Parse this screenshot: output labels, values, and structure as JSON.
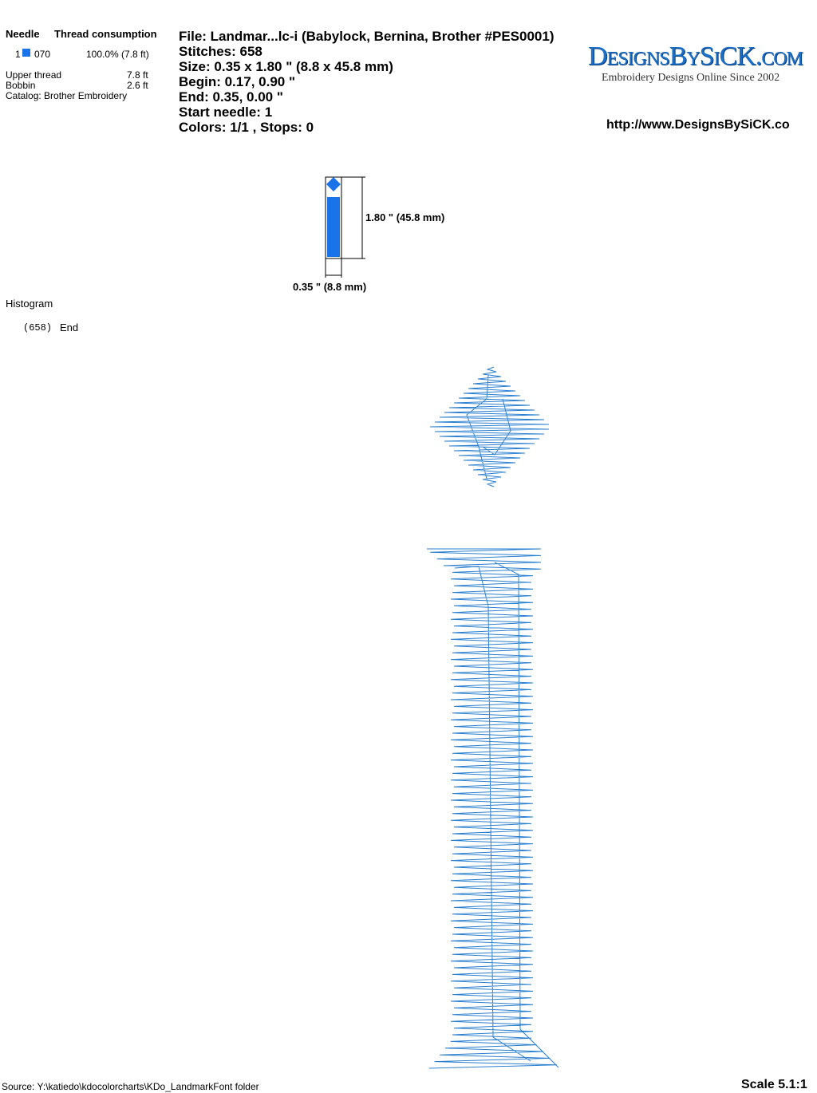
{
  "needle_table": {
    "header": {
      "needle": "Needle",
      "thread": "Thread consumption"
    },
    "row": {
      "number": "1",
      "code": "070",
      "share": "100.0% (7.8 ft)"
    },
    "upper": {
      "label": "Upper thread",
      "value": "7.8 ft"
    },
    "bobbin": {
      "label": "Bobbin",
      "value": "2.6 ft"
    },
    "catalog": "Catalog: Brother Embroidery"
  },
  "info": [
    "File: Landmar...lc-i  (Babylock, Bernina, Brother #PES0001)",
    "Stitches: 658",
    "Size: 0.35 x 1.80 \" (8.8 x 45.8 mm)",
    "Begin: 0.17, 0.90 \"",
    "End: 0.35, 0.00 \"",
    "Start needle: 1",
    "Colors: 1/1 , Stops: 0"
  ],
  "logo": {
    "name": "DesignsBySiCK.com",
    "tagline": "Embroidery Designs Online Since 2002",
    "url": "http://www.DesignsBySiCK.co"
  },
  "preview": {
    "height_label": "1.80 \" (45.8 mm)",
    "width_label": "0.35 \" (8.8 mm)"
  },
  "histogram": {
    "title": "Histogram",
    "count": "(658)",
    "label": "End"
  },
  "footer": {
    "source": "Source: Y:\\katiedo\\kdocolorcharts\\KDo_LandmarkFont folder",
    "scale": "Scale 5.1:1"
  }
}
